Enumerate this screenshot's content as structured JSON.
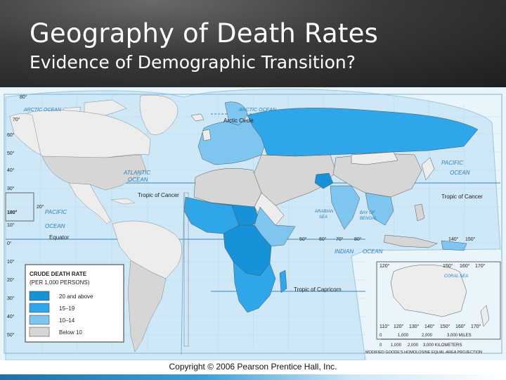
{
  "slide": {
    "title": "Geography of Death Rates",
    "subtitle": "Evidence of Demographic Transition?"
  },
  "colors": {
    "ocean": "#cfe8f7",
    "rate_20_above": "#1792d8",
    "rate_15_19": "#2fa6ea",
    "rate_10_14": "#7ec6f0",
    "rate_below_10": "#d6d6d6",
    "rate_below_10_alt": "#ededed"
  },
  "map": {
    "ocean_labels": {
      "arctic_ocean_left": "ARCTIC OCEAN",
      "arctic_ocean_right": "ARCTIC OCEAN",
      "atlantic": "ATLANTIC",
      "atlantic2": "OCEAN",
      "pacific_left": "PACIFIC",
      "pacific_left2": "OCEAN",
      "pacific_right": "PACIFIC",
      "pacific_right2": "OCEAN",
      "indian": "INDIAN",
      "indian2": "OCEAN",
      "arabian_sea": "ARABIAN",
      "arabian_sea2": "SEA",
      "bay_of_bengal": "BAY OF",
      "bay_of_bengal2": "BENGAL",
      "coral_sea": "CORAL SEA"
    },
    "lines": {
      "arctic_circle": "Arctic Circle",
      "tropic_cancer_left": "Tropic of Cancer",
      "tropic_cancer_right": "Tropic of Cancer",
      "equator": "Equator",
      "tropic_capricorn": "Tropic of Capricorn"
    },
    "lat_labels": {
      "l80": "80°",
      "l70": "70°",
      "l60": "60°",
      "l50": "50°",
      "l40": "40°",
      "l30": "30°",
      "l20": "20°",
      "l10": "10°",
      "l0": "0°",
      "l180": "180°",
      "l10b": "10°",
      "l20b": "20°",
      "l30b": "30°",
      "l40b": "40°",
      "l50b": "50°"
    },
    "lon_labels": {
      "e50": "50°",
      "e60": "60°",
      "e70": "70°",
      "e80": "80°",
      "e120": "120°",
      "e150": "150°",
      "e160": "160°",
      "e170": "170°",
      "e140": "140°",
      "e150b": "150°",
      "s110": "110°",
      "s120": "120°",
      "s130": "130°",
      "s140": "140°",
      "s150": "150°",
      "s160": "160°",
      "s170": "170°"
    },
    "legend": {
      "title1": "CRUDE DEATH RATE",
      "title2": "(PER 1,000 PERSONS)",
      "items": [
        "20 and above",
        "15–19",
        "10–14",
        "Below 10"
      ]
    },
    "scale": {
      "miles_ticks": [
        "0",
        "1,000",
        "2,000",
        "3,000 MILES"
      ],
      "km_ticks": [
        "0",
        "1,000",
        "2,000",
        "3,000 KILOMETERS"
      ],
      "projection": "MODIFIED GOODE'S HOMOLOSINE EQUAL-AREA PROJECTION"
    }
  },
  "footer": {
    "copyright": "Copyright © 2006 Pearson Prentice Hall, Inc."
  }
}
